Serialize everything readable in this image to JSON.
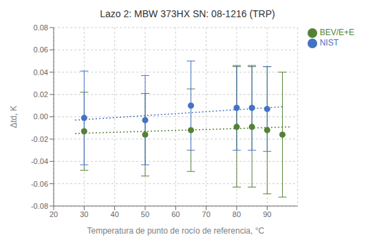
{
  "chart_data": {
    "type": "scatter",
    "title": "Lazo 2: MBW 373HX SN: 08-1216 (TRP)",
    "xlabel": "Temperatura de punto de rocío de referencia, °C",
    "ylabel": "Δtd, K",
    "xlim": [
      20,
      100
    ],
    "ylim": [
      -0.08,
      0.08
    ],
    "xticks": [
      20,
      30,
      40,
      50,
      60,
      70,
      80,
      90
    ],
    "yticks": [
      -0.08,
      -0.06,
      -0.04,
      -0.02,
      {
        "value": 0,
        "label": "0.00"
      },
      0.02,
      0.04,
      0.06,
      0.08
    ],
    "grid": true,
    "legend": "upper right",
    "series": [
      {
        "name": "BEV/E+E",
        "type": "scatter",
        "marker": "circle",
        "color": "#548235",
        "x": [
          30,
          50,
          65,
          80,
          85,
          90,
          95
        ],
        "values": [
          -0.013,
          -0.016,
          -0.012,
          -0.009,
          -0.009,
          -0.012,
          -0.016
        ],
        "error_lower": [
          0.035,
          0.037,
          0.037,
          0.054,
          0.054,
          0.057,
          0.056
        ],
        "error_upper": [
          0.035,
          0.037,
          0.037,
          0.054,
          0.054,
          0.057,
          0.056
        ]
      },
      {
        "name": "NIST",
        "type": "scatter",
        "marker": "circle",
        "color": "#4472C4",
        "x": [
          30,
          50,
          65,
          80,
          85,
          90
        ],
        "values": [
          -0.001,
          -0.003,
          0.01,
          0.008,
          0.008,
          0.007
        ],
        "error_lower": [
          0.042,
          0.04,
          0.04,
          0.038,
          0.038,
          0.038
        ],
        "error_upper": [
          0.042,
          0.04,
          0.04,
          0.038,
          0.038,
          0.038
        ]
      },
      {
        "type": "line",
        "line_style": "dotted",
        "color": "#4472C4",
        "x": [
          27,
          95
        ],
        "values": [
          -0.003,
          0.009
        ]
      },
      {
        "type": "line",
        "line_style": "dotted",
        "color": "#548235",
        "x": [
          27,
          98
        ],
        "values": [
          -0.015,
          -0.009
        ]
      }
    ]
  }
}
